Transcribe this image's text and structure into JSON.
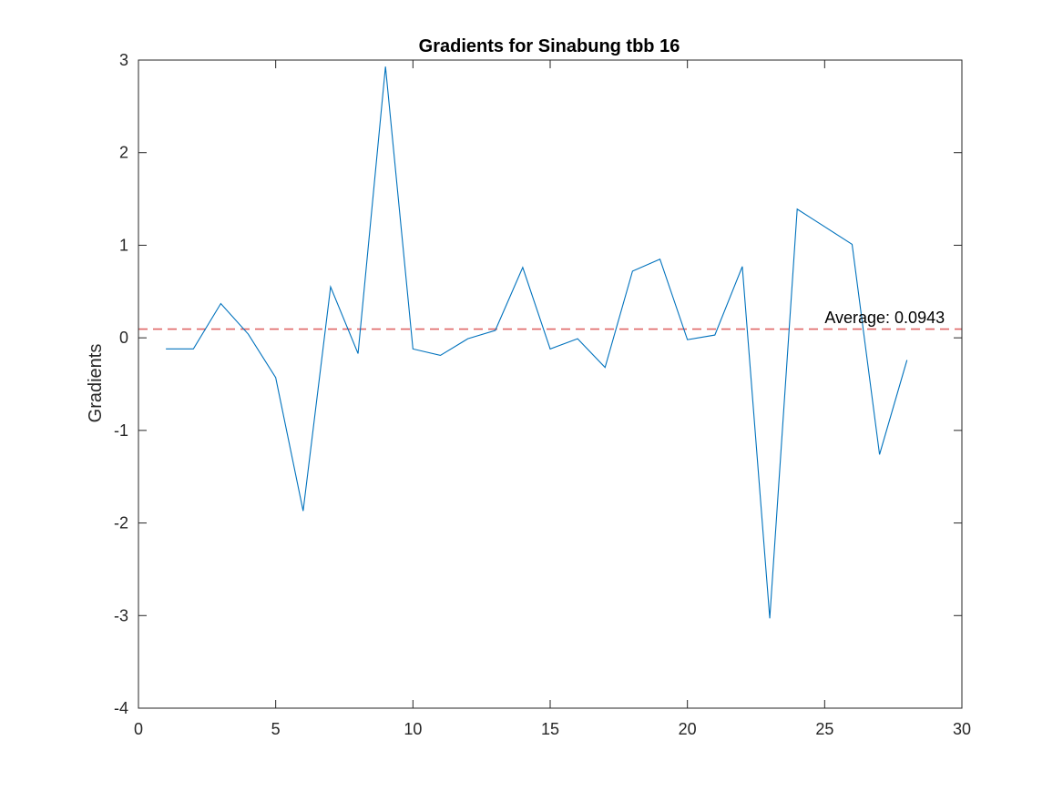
{
  "chart_data": {
    "type": "line",
    "title": "Gradients for Sinabung tbb 16",
    "xlabel": "",
    "ylabel": "Gradients",
    "xlim": [
      0,
      30
    ],
    "ylim": [
      -4,
      3
    ],
    "xticks": [
      0,
      5,
      10,
      15,
      20,
      25,
      30
    ],
    "yticks": [
      -4,
      -3,
      -2,
      -1,
      0,
      1,
      2,
      3
    ],
    "grid": false,
    "series": [
      {
        "color": "#0072BD",
        "x": [
          1,
          2,
          3,
          4,
          5,
          6,
          7,
          8,
          9,
          10,
          11,
          12,
          13,
          14,
          15,
          16,
          17,
          18,
          19,
          20,
          21,
          22,
          23,
          24,
          25,
          26,
          27,
          28
        ],
        "y": [
          -0.12,
          -0.12,
          0.37,
          0.04,
          -0.43,
          -1.87,
          0.55,
          -0.17,
          2.93,
          -0.12,
          -0.19,
          -0.01,
          0.08,
          0.76,
          -0.12,
          -0.01,
          -0.32,
          0.72,
          0.85,
          -0.02,
          0.03,
          0.77,
          -3.03,
          1.39,
          1.2,
          1.01,
          -1.26,
          -0.24
        ]
      }
    ],
    "reference_line": {
      "y": 0.0943,
      "color": "#E06666",
      "style": "dashed"
    },
    "annotation": {
      "text": "Average: 0.0943",
      "x": 25,
      "y": 0.22
    }
  }
}
